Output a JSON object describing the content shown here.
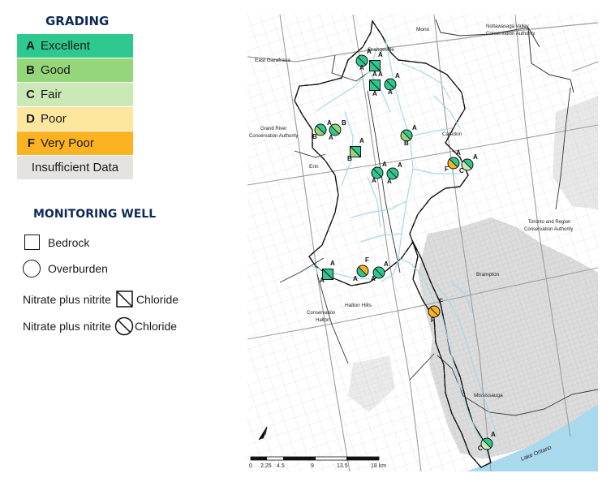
{
  "legend": {
    "grading_title": "GRADING",
    "grades": [
      {
        "letter": "A",
        "label": "Excellent",
        "color": "#2ec98f"
      },
      {
        "letter": "B",
        "label": "Good",
        "color": "#94d679"
      },
      {
        "letter": "C",
        "label": "Fair",
        "color": "#cbe9b6"
      },
      {
        "letter": "D",
        "label": "Poor",
        "color": "#fde79f"
      },
      {
        "letter": "F",
        "label": "Very Poor",
        "color": "#fbb321"
      },
      {
        "letter": "",
        "label": "Insufficient Data",
        "color": "#e5e3e1"
      }
    ],
    "well_title": "MONITORING WELL",
    "bedrock_label": "Bedrock",
    "overburden_label": "Overburden",
    "pair_left": "Nitrate plus nitrite",
    "pair_right": "Chloride"
  },
  "map": {
    "place_labels": {
      "mono": "Mono",
      "nottawasaga": [
        "Nottawasaga Valley",
        "Conservation Authority"
      ],
      "orangeville": "Orangeville",
      "east_garafraxa": "East Garafraxa",
      "grand_river": [
        "Grand River",
        "Conservation Authority"
      ],
      "caledon": "Caledon",
      "erin": "Erin",
      "trca": [
        "Toronto and Region",
        "Conservation Authority"
      ],
      "brampton": "Brampton",
      "conservation_halton": [
        "Conservation",
        "Halton"
      ],
      "halton_hills": "Halton Hills",
      "mississauga": "Mississauga",
      "lake_ontario": "Lake Ontario"
    },
    "wells": [
      {
        "type": "circle",
        "nitrate": "A",
        "chloride": "A"
      },
      {
        "type": "square",
        "nitrate": "A",
        "chloride": "A"
      },
      {
        "type": "square",
        "nitrate": "A",
        "chloride": "A"
      },
      {
        "type": "circle",
        "nitrate": "A",
        "chloride": "A"
      },
      {
        "type": "circle",
        "nitrate": "B",
        "chloride": "A"
      },
      {
        "type": "circle",
        "nitrate": "B",
        "chloride": "A"
      },
      {
        "type": "circle",
        "nitrate": "A",
        "chloride": "B"
      },
      {
        "type": "square",
        "nitrate": "B",
        "chloride": "A"
      },
      {
        "type": "circle",
        "nitrate": "A",
        "chloride": "A"
      },
      {
        "type": "circle",
        "nitrate": "A",
        "chloride": "A"
      },
      {
        "type": "circle",
        "nitrate": "F",
        "chloride": "A"
      },
      {
        "type": "circle",
        "nitrate": "C",
        "chloride": "A"
      },
      {
        "type": "square",
        "nitrate": "A",
        "chloride": "A"
      },
      {
        "type": "circle",
        "nitrate": "A",
        "chloride": "F"
      },
      {
        "type": "circle",
        "nitrate": "A",
        "chloride": "A"
      },
      {
        "type": "circle",
        "nitrate": "F",
        "chloride": "F"
      },
      {
        "type": "circle",
        "nitrate": "C",
        "chloride": "A"
      }
    ],
    "scale": {
      "ticks": [
        "0",
        "2.25",
        "4.5",
        "9",
        "13.5",
        "18 km"
      ]
    },
    "colors": {
      "lake": "#a9d9ec",
      "river": "#a7d8e8",
      "urban": "#cfcfcf",
      "roads": "#c4c4c4",
      "boundary": "#333333"
    }
  }
}
